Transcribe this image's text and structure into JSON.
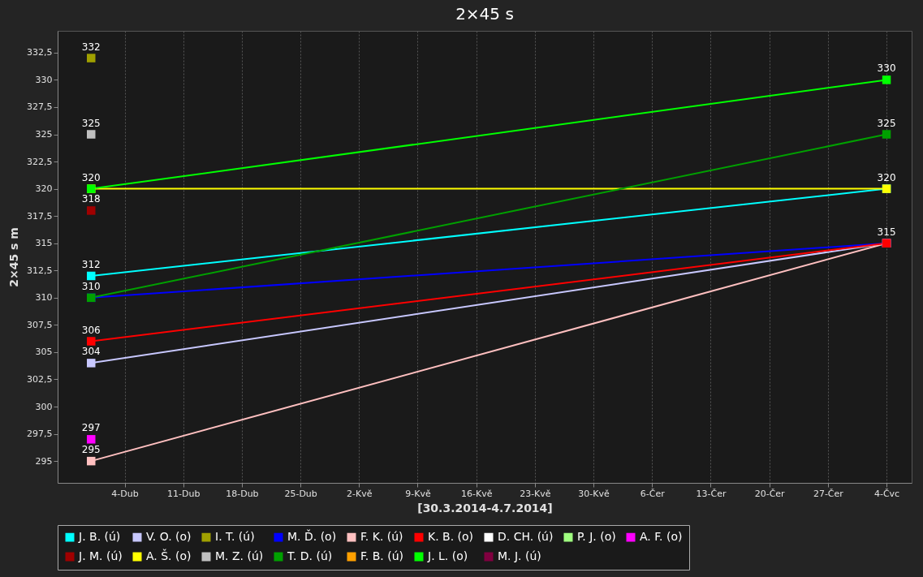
{
  "chart_data": {
    "type": "line",
    "title": "2×45 s",
    "xlabel": "[30.3.2014-4.7.2014]",
    "ylabel": "2×45 s m",
    "x": [
      "2014-03-31",
      "2014-07-04"
    ],
    "xlim": [
      "2014-03-27",
      "2014-07-07"
    ],
    "xticks": [
      {
        "value": "2014-04-04",
        "label": "4-Dub"
      },
      {
        "value": "2014-04-11",
        "label": "11-Dub"
      },
      {
        "value": "2014-04-18",
        "label": "18-Dub"
      },
      {
        "value": "2014-04-25",
        "label": "25-Dub"
      },
      {
        "value": "2014-05-02",
        "label": "2-Kvě"
      },
      {
        "value": "2014-05-09",
        "label": "9-Kvě"
      },
      {
        "value": "2014-05-16",
        "label": "16-Kvě"
      },
      {
        "value": "2014-05-23",
        "label": "23-Kvě"
      },
      {
        "value": "2014-05-30",
        "label": "30-Kvě"
      },
      {
        "value": "2014-06-06",
        "label": "6-Čer"
      },
      {
        "value": "2014-06-13",
        "label": "13-Čer"
      },
      {
        "value": "2014-06-20",
        "label": "20-Čer"
      },
      {
        "value": "2014-06-27",
        "label": "27-Čer"
      },
      {
        "value": "2014-07-04",
        "label": "4-Čvc"
      }
    ],
    "ylim": [
      293,
      334.5
    ],
    "yticks": [
      295,
      {
        "value": 297.5,
        "label": "297,5"
      },
      300,
      {
        "value": 302.5,
        "label": "302,5"
      },
      305,
      {
        "value": 307.5,
        "label": "307,5"
      },
      310,
      {
        "value": 312.5,
        "label": "312,5"
      },
      315,
      {
        "value": 317.5,
        "label": "317,5"
      },
      320,
      {
        "value": 322.5,
        "label": "322,5"
      },
      325,
      {
        "value": 327.5,
        "label": "327,5"
      },
      330,
      {
        "value": 332.5,
        "label": "332,5"
      }
    ],
    "grid": "x",
    "legend": "bottom",
    "marker": "square",
    "line_style": "solid",
    "series": [
      {
        "name": "J. B. (ú)",
        "color": "#00ffff",
        "values": [
          312,
          320
        ],
        "value_labels": [
          "312",
          "320"
        ]
      },
      {
        "name": "V. O. (o)",
        "color": "#c8c8ff",
        "values": [
          304,
          315
        ],
        "value_labels": [
          "304",
          "315"
        ]
      },
      {
        "name": "I. T. (ú)",
        "color": "#a0a000",
        "values": [
          332,
          null
        ],
        "value_labels": [
          "332",
          null
        ]
      },
      {
        "name": "M. Ď. (o)",
        "color": "#0000ff",
        "values": [
          310,
          315
        ],
        "value_labels": [
          "310",
          null
        ]
      },
      {
        "name": "F. K. (ú)",
        "color": "#ffc0c0",
        "values": [
          295,
          315
        ],
        "value_labels": [
          "295",
          null
        ]
      },
      {
        "name": "K. B. (o)",
        "color": "#ff0000",
        "values": [
          306,
          315
        ],
        "value_labels": [
          "306",
          null
        ]
      },
      {
        "name": "D. CH. (ú)",
        "color": "#ffffff",
        "values": [
          null,
          null
        ]
      },
      {
        "name": "P. J. (o)",
        "color": "#a0ff80",
        "values": [
          null,
          null
        ]
      },
      {
        "name": "A. F. (o)",
        "color": "#ff00ff",
        "values": [
          297,
          null
        ],
        "value_labels": [
          "297",
          null
        ]
      },
      {
        "name": "J. M. (ú)",
        "color": "#a00000",
        "values": [
          318,
          null
        ],
        "value_labels": [
          "318",
          null
        ]
      },
      {
        "name": "A. Š. (o)",
        "color": "#ffff00",
        "values": [
          320,
          320
        ],
        "value_labels": [
          "320",
          null
        ]
      },
      {
        "name": "M. Z. (ú)",
        "color": "#c0c0c0",
        "values": [
          325,
          null
        ],
        "value_labels": [
          "325",
          null
        ]
      },
      {
        "name": "T. D. (ú)",
        "color": "#00a000",
        "values": [
          310,
          325
        ],
        "value_labels": [
          null,
          "325"
        ]
      },
      {
        "name": "F. B. (ú)",
        "color": "#ffa000",
        "values": [
          null,
          null
        ]
      },
      {
        "name": "J. L. (o)",
        "color": "#00ff00",
        "values": [
          320,
          330
        ],
        "value_labels": [
          null,
          "330"
        ]
      },
      {
        "name": "M. J. (ú)",
        "color": "#800040",
        "values": [
          null,
          null
        ]
      }
    ]
  }
}
